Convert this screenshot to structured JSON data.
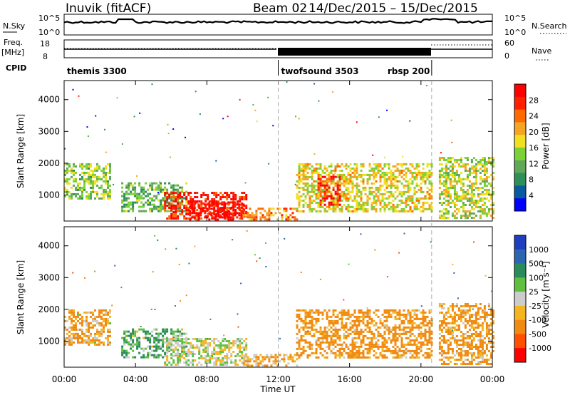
{
  "header": {
    "station": "Inuvik (fitACF)",
    "beam": "Beam 02",
    "dates": "14/Dec/2015 – 15/Dec/2015"
  },
  "top_panels": {
    "nsky_label": "N.Sky",
    "nsky_ticks": [
      "10^5",
      "10^0"
    ],
    "nsearch_label": "N.Search",
    "nsearch_ticks": [
      "10^5",
      "10^0"
    ],
    "freq_label": "Freq.",
    "freq_unit": "[MHz]",
    "freq_ticks": [
      "18",
      "8"
    ],
    "nave_label": "Nave",
    "nave_ticks": [
      "60",
      "0"
    ],
    "cpid_label": "CPID",
    "cpid_segments": [
      {
        "label": "themis 3300",
        "start_h": 0,
        "end_h": 12
      },
      {
        "label": "twofsound 3503",
        "start_h": 12,
        "end_h": 20.6
      },
      {
        "label": "rbsp 200",
        "start_h": 20.6,
        "end_h": 24
      }
    ]
  },
  "x_axis": {
    "ticks": [
      "00:00",
      "04:00",
      "08:00",
      "12:00",
      "16:00",
      "20:00",
      "00:00"
    ],
    "label": "Time UT"
  },
  "colors": {
    "power": [
      "#0000ff",
      "#0a5aa0",
      "#2f8f58",
      "#5fa858",
      "#7bd138",
      "#f0e020",
      "#f5a521",
      "#ff6a00",
      "#ff2000",
      "#ff0000"
    ],
    "velocity": [
      "#1f3fbf",
      "#2c66b0",
      "#2a8c5a",
      "#5fc040",
      "#cccccc",
      "#f5b521",
      "#f08a10",
      "#ff5000",
      "#ff0000"
    ]
  },
  "chart_data": [
    {
      "type": "heatmap",
      "panel": "power",
      "ylabel": "Slant Range [km]",
      "ylim": [
        180,
        4600
      ],
      "yticks": [
        1000,
        2000,
        3000,
        4000
      ],
      "xlim_hours": [
        0,
        24
      ],
      "colorbar": {
        "label": "Power [dB]",
        "ticks": [
          "28",
          "24",
          "20",
          "16",
          "12",
          "8",
          "4"
        ],
        "range": [
          0,
          32
        ]
      },
      "regions": [
        {
          "t0": 0,
          "t1": 2.6,
          "r0": 900,
          "r1": 2000,
          "value": 14
        },
        {
          "t0": 3.2,
          "t1": 6.8,
          "r0": 500,
          "r1": 1400,
          "value": 12
        },
        {
          "t0": 5.6,
          "t1": 10.2,
          "r0": 250,
          "r1": 1100,
          "value": 28
        },
        {
          "t0": 7.0,
          "t1": 10.0,
          "r0": 250,
          "r1": 800,
          "value": 30
        },
        {
          "t0": 10.0,
          "t1": 13.0,
          "r0": 200,
          "r1": 600,
          "value": 22
        },
        {
          "t0": 13.0,
          "t1": 20.6,
          "r0": 500,
          "r1": 2000,
          "value": 18
        },
        {
          "t0": 14.2,
          "t1": 15.4,
          "r0": 700,
          "r1": 1600,
          "value": 28
        },
        {
          "t0": 21.0,
          "t1": 24,
          "r0": 300,
          "r1": 2200,
          "value": 16
        }
      ]
    },
    {
      "type": "heatmap",
      "panel": "velocity",
      "ylabel": "Slant Range [km]",
      "ylim": [
        180,
        4600
      ],
      "yticks": [
        1000,
        2000,
        3000,
        4000
      ],
      "xlim_hours": [
        0,
        24
      ],
      "colorbar": {
        "label": "Velocity [m s⁻¹]",
        "ticks": [
          "1000",
          "500",
          "100",
          "25",
          "-25",
          "-100",
          "-500",
          "-1000"
        ],
        "range": [
          -1000,
          1000
        ]
      },
      "regions": [
        {
          "t0": 0,
          "t1": 2.6,
          "r0": 900,
          "r1": 2000,
          "value": -100
        },
        {
          "t0": 3.2,
          "t1": 6.8,
          "r0": 500,
          "r1": 1400,
          "value": 100
        },
        {
          "t0": 5.6,
          "t1": 10.2,
          "r0": 250,
          "r1": 1100,
          "value": 0
        },
        {
          "t0": 10.0,
          "t1": 13.0,
          "r0": 200,
          "r1": 600,
          "value": -100
        },
        {
          "t0": 13.0,
          "t1": 20.6,
          "r0": 500,
          "r1": 2000,
          "value": -200
        },
        {
          "t0": 21.0,
          "t1": 24,
          "r0": 300,
          "r1": 2200,
          "value": -150
        }
      ]
    }
  ]
}
